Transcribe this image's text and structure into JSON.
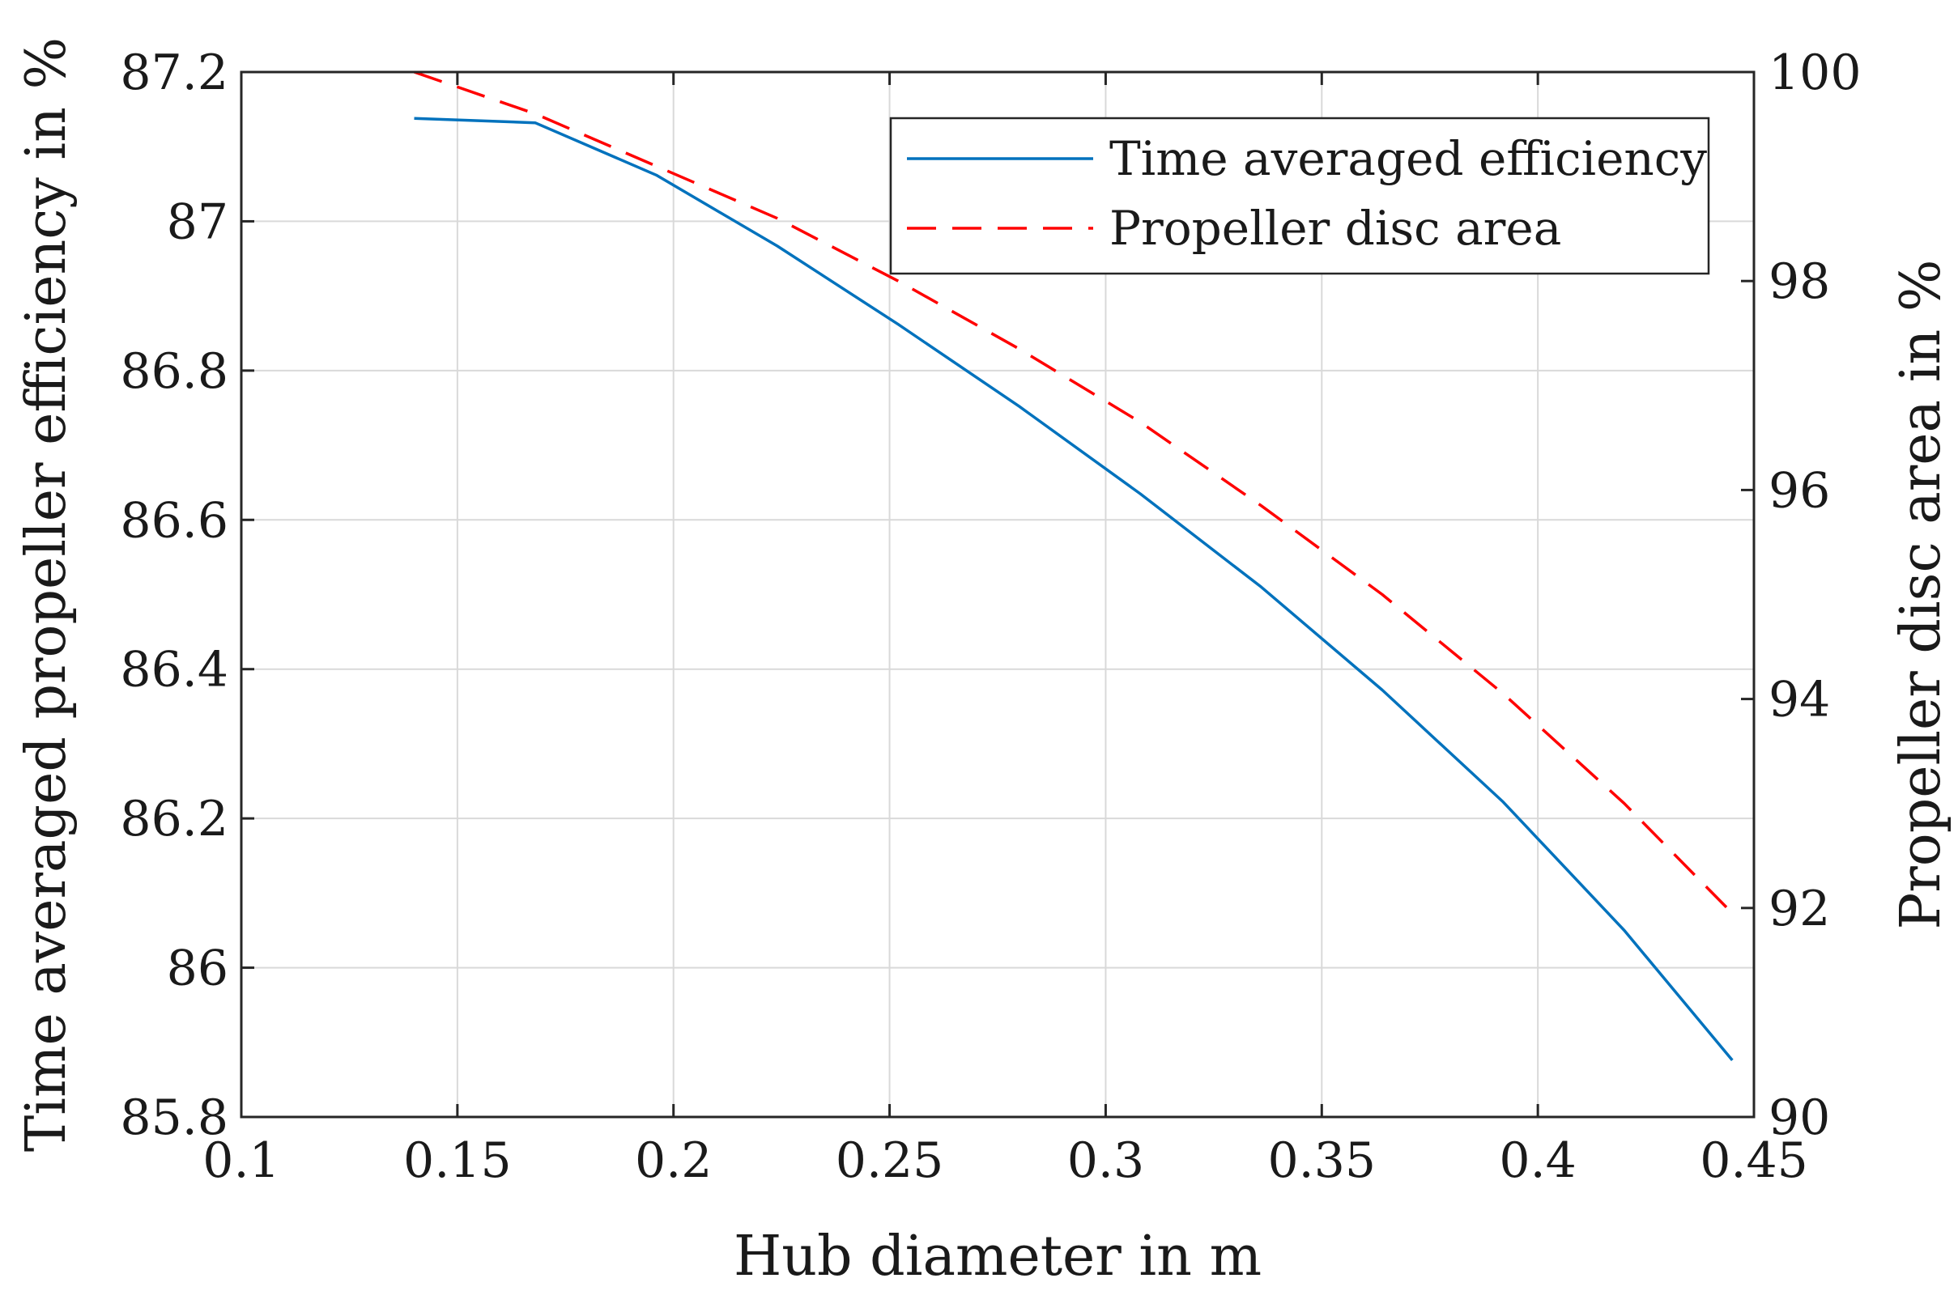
{
  "chart_data": {
    "type": "line",
    "title": "",
    "xlabel": "Hub diameter in m",
    "ylabel": "Time averaged propeller efficiency in %",
    "y2label": "Propeller disc area in %",
    "xlim": [
      0.1,
      0.45
    ],
    "ylim": [
      85.8,
      87.2
    ],
    "y2lim": [
      90,
      100
    ],
    "xticks": [
      "0.1",
      "0.15",
      "0.2",
      "0.25",
      "0.3",
      "0.35",
      "0.4",
      "0.45"
    ],
    "yticks": [
      "85.8",
      "86",
      "86.2",
      "86.4",
      "86.6",
      "86.8",
      "87",
      "87.2"
    ],
    "y2ticks": [
      "90",
      "92",
      "94",
      "96",
      "98",
      "100"
    ],
    "grid": true,
    "legend_position": "top-right",
    "series": [
      {
        "name": "Time averaged efficiency",
        "axis": "left",
        "style": "solid",
        "color": "#0072BD",
        "x": [
          0.14,
          0.168,
          0.196,
          0.224,
          0.252,
          0.28,
          0.308,
          0.336,
          0.364,
          0.392,
          0.42,
          0.445
        ],
        "y": [
          87.138,
          87.132,
          87.062,
          86.967,
          86.862,
          86.752,
          86.635,
          86.51,
          86.372,
          86.222,
          86.05,
          85.876
        ]
      },
      {
        "name": "Propeller disc area",
        "axis": "right",
        "style": "dashed",
        "color": "#FF0000",
        "x": [
          0.14,
          0.168,
          0.196,
          0.224,
          0.252,
          0.28,
          0.308,
          0.336,
          0.364,
          0.392,
          0.42,
          0.445
        ],
        "y": [
          100,
          99.6,
          99.1,
          98.6,
          98.0,
          97.35,
          96.65,
          95.85,
          95.0,
          94.05,
          93.0,
          91.95
        ]
      }
    ]
  }
}
